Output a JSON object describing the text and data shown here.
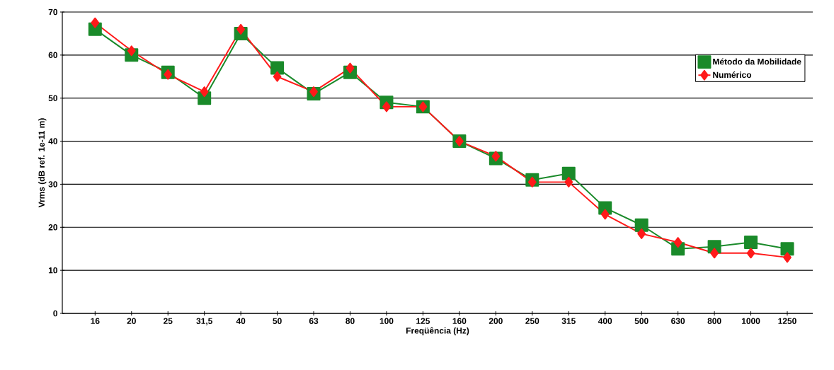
{
  "chart_data": {
    "type": "line",
    "xlabel": "Freqüência (Hz)",
    "ylabel": "Vrms (dB ref. 1e-11 m)",
    "categories": [
      "16",
      "20",
      "25",
      "31,5",
      "40",
      "50",
      "63",
      "80",
      "100",
      "125",
      "160",
      "200",
      "250",
      "315",
      "400",
      "500",
      "630",
      "800",
      "1000",
      "1250"
    ],
    "series": [
      {
        "name": "Método da Mobilidade",
        "color": "#1a8a2a",
        "marker": "square",
        "values": [
          66,
          60,
          56,
          50,
          65,
          57,
          51,
          56,
          49,
          48,
          40,
          36,
          31,
          32.5,
          24.5,
          20.5,
          15,
          15.5,
          16.5,
          15
        ]
      },
      {
        "name": "Numérico",
        "color": "#ff1a1a",
        "marker": "diamond",
        "values": [
          67.5,
          61,
          55.5,
          51.5,
          66,
          55,
          51.5,
          57,
          48,
          48,
          40,
          36.5,
          30.5,
          30.5,
          23,
          18.5,
          16.5,
          14,
          14,
          13
        ]
      }
    ],
    "ylim": [
      0,
      70
    ],
    "yticks": [
      0,
      10,
      20,
      30,
      40,
      50,
      60,
      70
    ],
    "grid": "y",
    "legend": "top right",
    "line_style": "solid"
  }
}
